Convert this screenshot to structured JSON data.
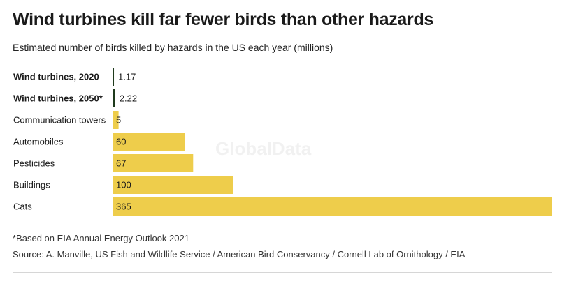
{
  "header": {
    "title": "Wind turbines kill far fewer birds than other hazards",
    "subtitle": "Estimated number of birds killed by hazards in the US each year (millions)"
  },
  "footer": {
    "footnote": "*Based on EIA Annual Energy Outlook 2021",
    "source": "Source: A. Manville, US Fish and Wildlife Service / American Bird Conservancy / Cornell Lab of Ornithology / EIA"
  },
  "watermark": "GlobalData",
  "chart_data": {
    "type": "bar",
    "orientation": "horizontal",
    "categories": [
      "Wind turbines, 2020",
      "Wind turbines, 2050*",
      "Communication towers",
      "Automobiles",
      "Pesticides",
      "Buildings",
      "Cats"
    ],
    "values": [
      1.17,
      2.22,
      5,
      60,
      67,
      100,
      365
    ],
    "value_labels": [
      "1.17",
      "2.22",
      "5",
      "60",
      "67",
      "100",
      "365"
    ],
    "bold_categories": [
      true,
      true,
      false,
      false,
      false,
      false,
      false
    ],
    "bar_colors": [
      "#1f3a1c",
      "#1f3a1c",
      "#eecd4b",
      "#eecd4b",
      "#eecd4b",
      "#eecd4b",
      "#eecd4b"
    ],
    "xlim": [
      0,
      365
    ],
    "grid": false,
    "legend": "none"
  }
}
